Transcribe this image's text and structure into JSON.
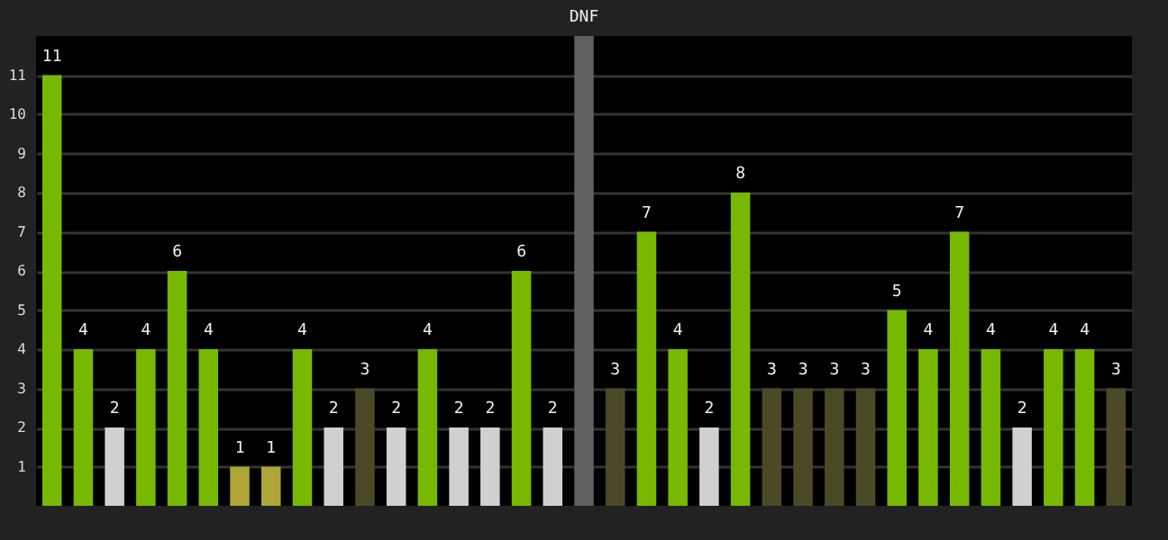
{
  "chart_data": {
    "type": "bar",
    "categories": [
      null,
      null,
      null,
      null,
      null,
      null,
      null,
      null,
      null,
      null,
      null,
      null,
      null,
      null,
      null,
      null,
      null,
      null,
      null,
      null,
      null,
      null,
      null,
      null,
      null,
      null,
      null,
      null,
      null,
      null,
      null,
      null,
      null,
      null,
      null
    ],
    "values": [
      11,
      4,
      2,
      4,
      6,
      4,
      1,
      1,
      4,
      2,
      3,
      2,
      4,
      2,
      2,
      6,
      2,
      12,
      3,
      7,
      4,
      2,
      8,
      3,
      3,
      3,
      3,
      5,
      4,
      7,
      4,
      2,
      4,
      4,
      3
    ],
    "colors": [
      "#76b900",
      "#76b900",
      "#d0d0d0",
      "#76b900",
      "#76b900",
      "#76b900",
      "#aea536",
      "#aea536",
      "#76b900",
      "#d0d0d0",
      "#4c4a26",
      "#d0d0d0",
      "#76b900",
      "#d0d0d0",
      "#d0d0d0",
      "#76b900",
      "#d0d0d0",
      "#606060",
      "#4c4a26",
      "#76b900",
      "#76b900",
      "#d0d0d0",
      "#76b900",
      "#4c4a26",
      "#4c4a26",
      "#4c4a26",
      "#4c4a26",
      "#76b900",
      "#76b900",
      "#76b900",
      "#76b900",
      "#d0d0d0",
      "#76b900",
      "#76b900",
      "#4c4a26"
    ],
    "value_labels": [
      "11",
      "4",
      "2",
      "4",
      "6",
      "4",
      "1",
      "1",
      "4",
      "2",
      "3",
      "2",
      "4",
      "2",
      "2",
      "6",
      "2",
      "DNF",
      "3",
      "7",
      "4",
      "2",
      "8",
      "3",
      "3",
      "3",
      "3",
      "5",
      "4",
      "7",
      "4",
      "2",
      "4",
      "4",
      "3"
    ],
    "ylim": [
      0,
      12
    ],
    "yticks": [
      1,
      2,
      3,
      4,
      5,
      6,
      7,
      8,
      9,
      10,
      11
    ],
    "grid": "y",
    "tick_labels": "y"
  }
}
